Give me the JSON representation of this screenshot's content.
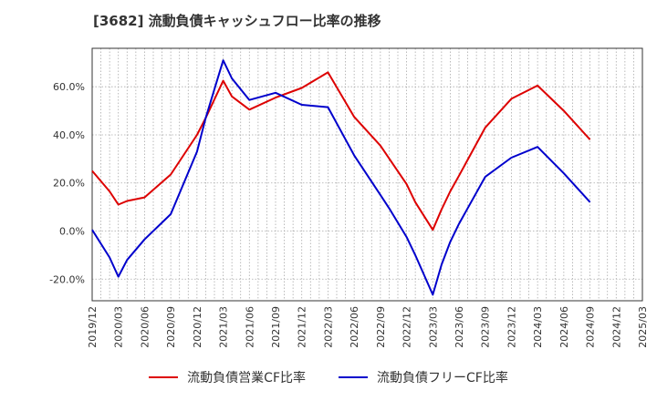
{
  "chart_data": {
    "type": "line",
    "title": "[3682]  流動負債キャッシュフロー比率の推移",
    "x": [
      "2019/12",
      "2020/01",
      "2020/02",
      "2020/03",
      "2020/04",
      "2020/06",
      "2020/09",
      "2020/12",
      "2021/01",
      "2021/03",
      "2021/04",
      "2021/06",
      "2021/09",
      "2021/12",
      "2022/03",
      "2022/06",
      "2022/09",
      "2022/10",
      "2022/12",
      "2023/01",
      "2023/03",
      "2023/04",
      "2023/05",
      "2023/06",
      "2023/09",
      "2023/12",
      "2024/03",
      "2024/06",
      "2024/09"
    ],
    "x_ticks": [
      "2019/12",
      "2020/03",
      "2020/06",
      "2020/09",
      "2020/12",
      "2021/03",
      "2021/06",
      "2021/09",
      "2021/12",
      "2022/03",
      "2022/06",
      "2022/09",
      "2022/12",
      "2023/03",
      "2023/06",
      "2023/09",
      "2023/12",
      "2024/03",
      "2024/06",
      "2024/09",
      "2024/12",
      "2025/03"
    ],
    "y_ticks": [
      "60.0%",
      "40.0%",
      "20.0%",
      "0.0%",
      "-20.0%"
    ],
    "ylim": [
      -29,
      76
    ],
    "series": [
      {
        "name": "流動負債営業CF比率",
        "color": "#dd0000",
        "points": [
          [
            "2019/12",
            25.0
          ],
          [
            "2020/02",
            16.5
          ],
          [
            "2020/03",
            11.0
          ],
          [
            "2020/04",
            12.5
          ],
          [
            "2020/06",
            14.0
          ],
          [
            "2020/09",
            23.5
          ],
          [
            "2020/12",
            40.0
          ],
          [
            "2021/01",
            47.0
          ],
          [
            "2021/03",
            62.5
          ],
          [
            "2021/04",
            56.0
          ],
          [
            "2021/06",
            50.5
          ],
          [
            "2021/09",
            55.5
          ],
          [
            "2021/12",
            59.5
          ],
          [
            "2022/03",
            66.0
          ],
          [
            "2022/06",
            47.5
          ],
          [
            "2022/09",
            35.5
          ],
          [
            "2022/12",
            19.5
          ],
          [
            "2023/01",
            12.0
          ],
          [
            "2023/03",
            0.5
          ],
          [
            "2023/04",
            9.0
          ],
          [
            "2023/05",
            16.5
          ],
          [
            "2023/06",
            23.0
          ],
          [
            "2023/09",
            43.0
          ],
          [
            "2023/12",
            55.0
          ],
          [
            "2024/03",
            60.5
          ],
          [
            "2024/06",
            50.0
          ],
          [
            "2024/09",
            38.0
          ]
        ]
      },
      {
        "name": "流動負債フリーCF比率",
        "color": "#0000cc",
        "points": [
          [
            "2019/12",
            0.5
          ],
          [
            "2020/02",
            -11.0
          ],
          [
            "2020/03",
            -19.0
          ],
          [
            "2020/04",
            -12.0
          ],
          [
            "2020/06",
            -3.5
          ],
          [
            "2020/09",
            7.0
          ],
          [
            "2020/12",
            33.0
          ],
          [
            "2021/01",
            47.0
          ],
          [
            "2021/03",
            71.0
          ],
          [
            "2021/04",
            63.5
          ],
          [
            "2021/06",
            54.5
          ],
          [
            "2021/09",
            57.5
          ],
          [
            "2021/12",
            52.5
          ],
          [
            "2022/03",
            51.5
          ],
          [
            "2022/06",
            31.5
          ],
          [
            "2022/09",
            15.0
          ],
          [
            "2022/10",
            9.5
          ],
          [
            "2022/12",
            -2.5
          ],
          [
            "2023/01",
            -10.0
          ],
          [
            "2023/03",
            -26.5
          ],
          [
            "2023/04",
            -14.0
          ],
          [
            "2023/05",
            -4.5
          ],
          [
            "2023/06",
            3.0
          ],
          [
            "2023/09",
            22.5
          ],
          [
            "2023/12",
            30.5
          ],
          [
            "2024/03",
            35.0
          ],
          [
            "2024/06",
            24.0
          ],
          [
            "2024/09",
            12.0
          ]
        ]
      }
    ],
    "grid": true,
    "legend_position": "bottom"
  }
}
